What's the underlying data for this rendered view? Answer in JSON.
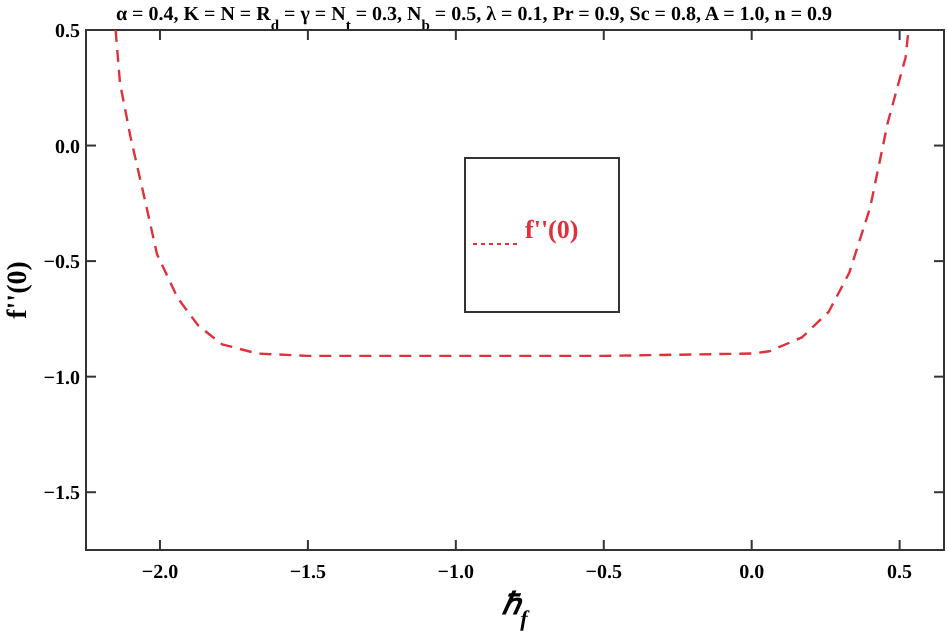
{
  "chart_data": {
    "type": "line",
    "title": "α = 0.4, K = N = R$_{d}$ = γ = N$_{t}$ = 0.3, N$_{b}$ = 0.5, λ = 0.1, Pr = 0.9, Sc = 0.8, A = 1.0, n = 0.9",
    "xlabel": "ℏ$_{f}$",
    "ylabel": "f''(0)",
    "xlim": [
      -2.25,
      0.65
    ],
    "ylim": [
      -1.75,
      0.5
    ],
    "xticks": [
      {
        "value": -2,
        "label": "−2.0"
      },
      {
        "value": -1.5,
        "label": "−1.5"
      },
      {
        "value": -1,
        "label": "−1.0"
      },
      {
        "value": -0.5,
        "label": "−0.5"
      },
      {
        "value": 0,
        "label": "0.0"
      },
      {
        "value": 0.5,
        "label": "0.5"
      }
    ],
    "yticks": [
      {
        "value": -1.5,
        "label": "−1.5"
      },
      {
        "value": -1,
        "label": "−1.0"
      },
      {
        "value": -0.5,
        "label": "−0.5"
      },
      {
        "value": 0,
        "label": "0.0"
      },
      {
        "value": 0.5,
        "label": "0.5"
      }
    ],
    "legend": "center",
    "line_style": "dashed",
    "grid": false,
    "series": [
      {
        "name": "f''(0)",
        "color": "#e0303a",
        "x": [
          -2.15,
          -2.135,
          -2.1,
          -2.05,
          -2.01,
          -1.94,
          -1.87,
          -1.79,
          -1.67,
          -1.5,
          -1.0,
          -0.5,
          0.0,
          0.06,
          0.17,
          0.26,
          0.33,
          0.4,
          0.46,
          0.52,
          0.53
        ],
        "values": [
          0.5,
          0.27,
          0.04,
          -0.24,
          -0.47,
          -0.66,
          -0.78,
          -0.86,
          -0.9,
          -0.91,
          -0.91,
          -0.91,
          -0.9,
          -0.89,
          -0.83,
          -0.72,
          -0.55,
          -0.27,
          0.1,
          0.38,
          0.5
        ]
      }
    ]
  }
}
